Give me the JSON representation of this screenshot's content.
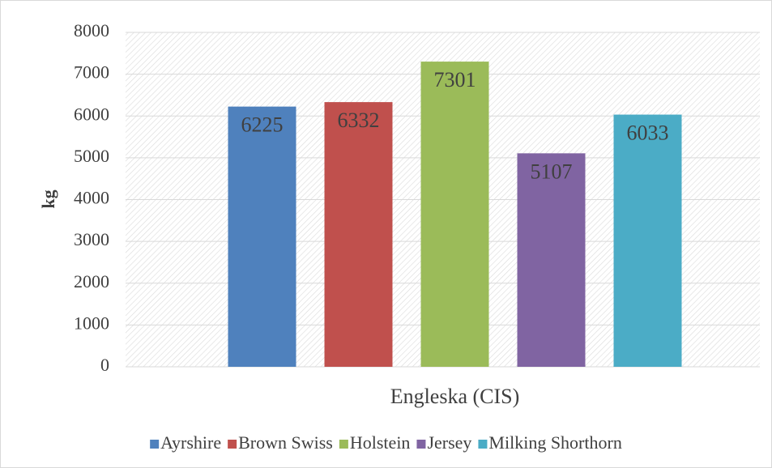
{
  "chart_data": {
    "type": "bar",
    "y_label": "kg",
    "categories": [
      "Engleska (CIS)"
    ],
    "series": [
      {
        "name": "Ayrshire",
        "color": "#4f81bd",
        "values": [
          6225
        ]
      },
      {
        "name": "Brown Swiss",
        "color": "#c0504d",
        "values": [
          6332
        ]
      },
      {
        "name": "Holstein",
        "color": "#9bbb59",
        "values": [
          7301
        ]
      },
      {
        "name": "Jersey",
        "color": "#8064a2",
        "values": [
          5107
        ]
      },
      {
        "name": "Milking Shorthorn",
        "color": "#4bacc6",
        "values": [
          6033
        ]
      }
    ],
    "ylim": [
      0,
      8000
    ],
    "yticks": [
      0,
      1000,
      2000,
      3000,
      4000,
      5000,
      6000,
      7000,
      8000
    ],
    "grid": true,
    "legend": "bottom"
  }
}
